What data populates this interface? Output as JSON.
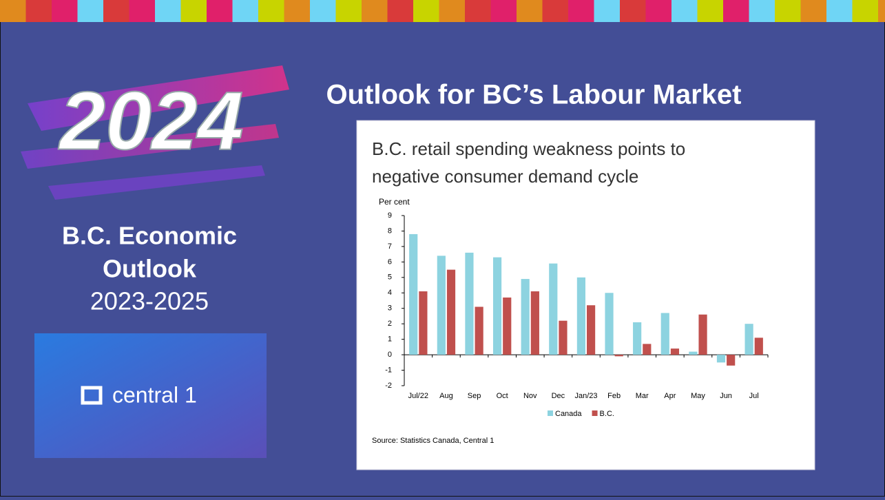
{
  "slide": {
    "title": "Outlook for BC’s Labour Market",
    "badge": "2024",
    "subtitle_lines": [
      "B.C. Economic",
      "Outlook"
    ],
    "years": "2023-2025",
    "logo": "central 1"
  },
  "chart_data": {
    "type": "bar",
    "title_lines": [
      "B.C. retail spending weakness points to",
      "negative consumer demand cycle"
    ],
    "y_label": "Per cent",
    "source": "Source: Statistics Canada, Central 1",
    "categories": [
      "Jul/22",
      "Aug",
      "Sep",
      "Oct",
      "Nov",
      "Dec",
      "Jan/23",
      "Feb",
      "Mar",
      "Apr",
      "May",
      "Jun",
      "Jul"
    ],
    "series": [
      {
        "name": "Canada",
        "color": "#8dd3e0",
        "values": [
          7.8,
          6.4,
          6.6,
          6.3,
          4.9,
          5.9,
          5.0,
          4.0,
          2.1,
          2.7,
          0.2,
          -0.5,
          2.0
        ]
      },
      {
        "name": "B.C.",
        "color": "#c0504d",
        "values": [
          4.1,
          5.5,
          3.1,
          3.7,
          4.1,
          2.2,
          3.2,
          -0.1,
          0.7,
          0.4,
          2.6,
          -0.7,
          1.1
        ]
      }
    ],
    "ylim": [
      -2,
      9
    ],
    "yticks": [
      -2,
      -1,
      0,
      1,
      2,
      3,
      4,
      5,
      6,
      7,
      8,
      9
    ],
    "grid": false,
    "legend": "bottom"
  }
}
